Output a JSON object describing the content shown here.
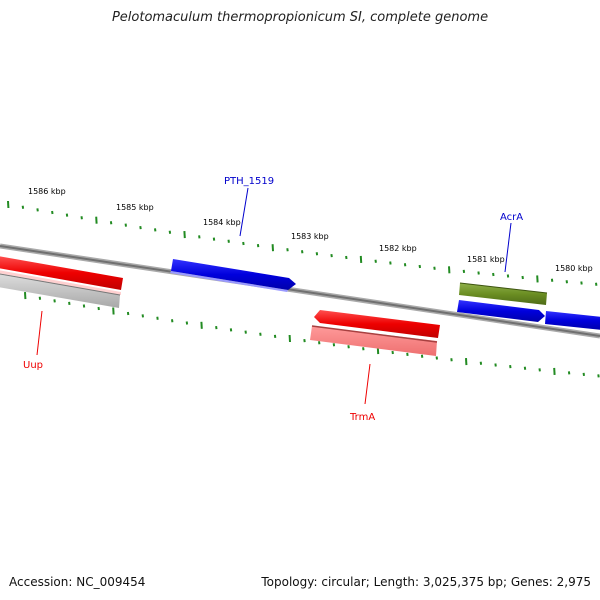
{
  "title": "Pelotomaculum thermopropionicum SI, complete genome",
  "footer": {
    "accession": "Accession: NC_009454",
    "topology": "Topology: circular; Length: 3,025,375 bp; Genes: 2,975"
  },
  "ruler": {
    "unit": "kbp",
    "labels": [
      "1586 kbp",
      "1585 kbp",
      "1584 kbp",
      "1583 kbp",
      "1582 kbp",
      "1581 kbp",
      "1580 kbp"
    ]
  },
  "features": [
    {
      "id": "uup",
      "label": "Uup",
      "color": "#ee0000",
      "strand": "minus"
    },
    {
      "id": "pth_1519",
      "label": "PTH_1519",
      "color": "#0000cc",
      "strand": "plus"
    },
    {
      "id": "trma",
      "label": "TrmA",
      "color": "#ee0000",
      "strand": "minus"
    },
    {
      "id": "acra",
      "label": "AcrA",
      "color": "#6b8e23",
      "strand": "plus"
    }
  ],
  "colors": {
    "backbone": "#808080",
    "ticks": "#228b22",
    "gene_red": "#ee0000",
    "gene_blue": "#0000dd",
    "gene_green": "#6b8e23",
    "gene_grey": "#aaaaaa"
  }
}
